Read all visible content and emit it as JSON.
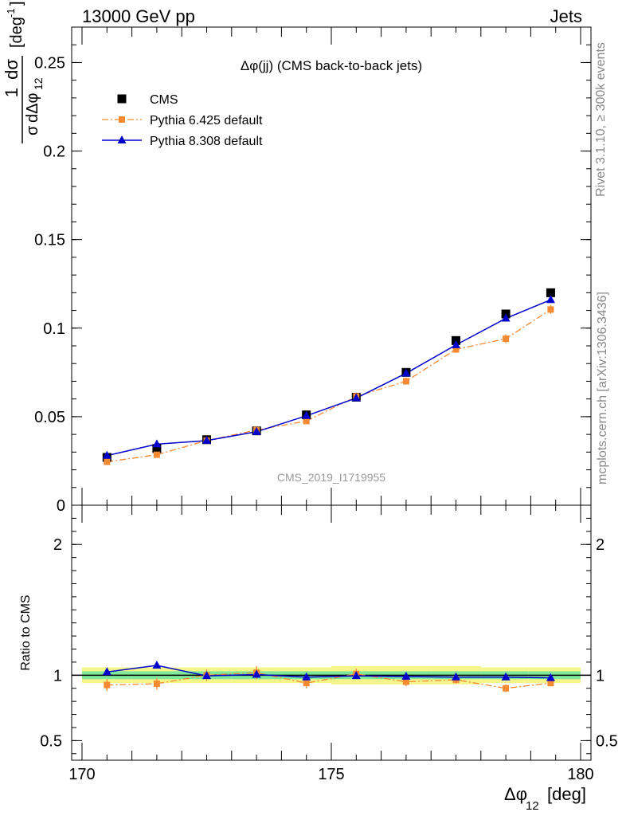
{
  "header": {
    "left": "13000 GeV pp",
    "right": "Jets"
  },
  "side_labels": {
    "rivet": "Rivet 3.1.10, ≥ 300k events",
    "mcplots": "mcplots.cern.ch [arXiv:1306.3436]"
  },
  "chart_data": [
    {
      "type": "line",
      "title": "Δφ(jj) (CMS back-to-back jets)",
      "watermark": "CMS_2019_I1719955",
      "ylabel": "1/σ dσ/dΔφ12 [deg-1]",
      "ylim": [
        0,
        0.27
      ],
      "xlim": [
        170,
        180
      ],
      "yticks": [
        "0.05",
        "0.1",
        "0.15",
        "0.2",
        "0.25"
      ],
      "y_zero_label": "0",
      "legend_position": "top-left",
      "x": [
        170.5,
        171.5,
        172.5,
        173.5,
        174.5,
        175.5,
        176.5,
        177.5,
        178.5,
        179.4
      ],
      "series": [
        {
          "name": "CMS",
          "marker": "square",
          "color": "#000000",
          "values": [
            0.027,
            0.032,
            0.037,
            0.042,
            0.051,
            0.061,
            0.075,
            0.093,
            0.108,
            0.12
          ]
        },
        {
          "name": "Pythia 6.425 default",
          "marker": "square-small",
          "line": "dashdot",
          "color": "#f58a32",
          "values": [
            0.0245,
            0.0285,
            0.0365,
            0.0425,
            0.0475,
            0.0615,
            0.07,
            0.088,
            0.094,
            0.1105
          ],
          "errors": [
            0.0012,
            0.0012,
            0.0012,
            0.0015,
            0.0015,
            0.0018,
            0.002,
            0.002,
            0.0025,
            0.0025
          ]
        },
        {
          "name": "Pythia 8.308 default",
          "marker": "triangle",
          "line": "solid",
          "color": "#0000cc",
          "values": [
            0.028,
            0.0345,
            0.0365,
            0.0415,
            0.0505,
            0.0605,
            0.0745,
            0.0905,
            0.1055,
            0.116
          ]
        }
      ]
    },
    {
      "type": "line",
      "ylabel": "Ratio to CMS",
      "xlabel": "Δφ12 [deg]",
      "ylim": [
        0.35,
        2.3
      ],
      "xlim": [
        170,
        180
      ],
      "yticks": [
        "0.5",
        "1",
        "2"
      ],
      "xticks": [
        "170",
        "175",
        "180"
      ],
      "band_inner_color": "#7fe89a",
      "band_outer_color": "#f5f58a",
      "band_inner": [
        0.03,
        0.03,
        0.03,
        0.03,
        0.03,
        0.03,
        0.03,
        0.03,
        0.03,
        0.03
      ],
      "band_outer": [
        0.06,
        0.06,
        0.06,
        0.06,
        0.06,
        0.07,
        0.07,
        0.07,
        0.06,
        0.06
      ],
      "x": [
        170.5,
        171.5,
        172.5,
        173.5,
        174.5,
        175.5,
        176.5,
        177.5,
        178.5,
        179.4
      ],
      "series": [
        {
          "name": "Pythia 6.425 default",
          "color": "#f58a32",
          "values": [
            0.925,
            0.935,
            1.0,
            1.02,
            0.94,
            1.01,
            0.95,
            0.965,
            0.9,
            0.94
          ],
          "errors": [
            0.045,
            0.045,
            0.045,
            0.05,
            0.04,
            0.04,
            0.035,
            0.03,
            0.03,
            0.025
          ]
        },
        {
          "name": "Pythia 8.308 default",
          "color": "#0000cc",
          "values": [
            1.025,
            1.075,
            0.995,
            1.005,
            0.985,
            0.995,
            0.99,
            0.985,
            0.985,
            0.98
          ]
        }
      ]
    }
  ]
}
